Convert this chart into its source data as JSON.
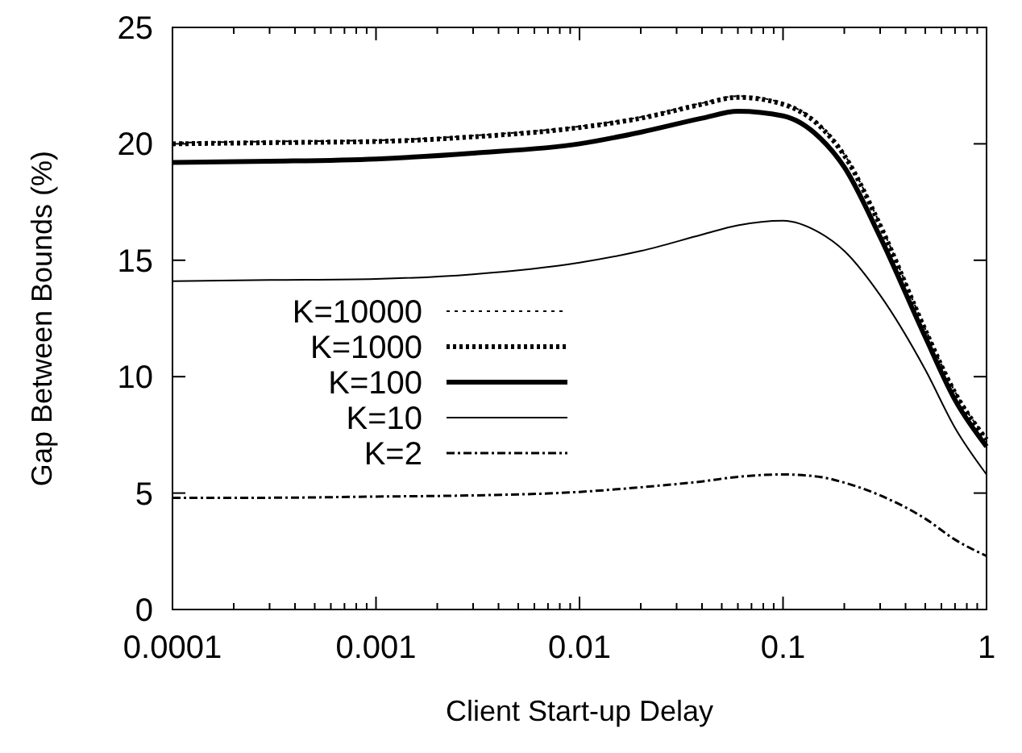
{
  "chart_data": {
    "type": "line",
    "xlabel": "Client Start-up Delay",
    "ylabel": "Gap Between Bounds (%)",
    "log": "x",
    "xlim": [
      0.0001,
      1
    ],
    "xticks": [
      0.0001,
      0.001,
      0.01,
      0.1,
      1
    ],
    "ylim": [
      0,
      25
    ],
    "yticks": [
      0,
      5,
      10,
      15,
      20,
      25
    ],
    "grid": false,
    "legend": "left",
    "x": [
      0.0001,
      0.0003,
      0.001,
      0.003,
      0.01,
      0.02,
      0.04,
      0.06,
      0.1,
      0.15,
      0.2,
      0.3,
      0.5,
      0.7,
      1
    ],
    "series": [
      {
        "name": "K=10000",
        "color": "#000000",
        "line_style": "dotted",
        "values": [
          20.05,
          20.1,
          20.15,
          20.35,
          20.75,
          21.15,
          21.75,
          22.05,
          21.75,
          20.85,
          19.55,
          16.55,
          12.05,
          9.35,
          7.35
        ]
      },
      {
        "name": "K=1000",
        "color": "#000000",
        "line_style": "dotted",
        "values": [
          20.0,
          20.05,
          20.1,
          20.3,
          20.7,
          21.1,
          21.7,
          22.0,
          21.7,
          20.8,
          19.5,
          16.5,
          12.0,
          9.3,
          7.3
        ]
      },
      {
        "name": "K=100",
        "color": "#000000",
        "line_style": "solid",
        "values": [
          19.2,
          19.25,
          19.35,
          19.6,
          20.0,
          20.5,
          21.1,
          21.4,
          21.2,
          20.3,
          19.0,
          16.0,
          11.7,
          9.0,
          7.0
        ]
      },
      {
        "name": "K=10",
        "color": "#000000",
        "line_style": "solid",
        "values": [
          14.1,
          14.15,
          14.2,
          14.4,
          14.9,
          15.4,
          16.1,
          16.5,
          16.7,
          16.2,
          15.4,
          13.5,
          10.3,
          7.8,
          5.8
        ]
      },
      {
        "name": "K=2",
        "color": "#000000",
        "line_style": "dashdot",
        "values": [
          4.8,
          4.8,
          4.85,
          4.9,
          5.05,
          5.25,
          5.5,
          5.7,
          5.8,
          5.7,
          5.45,
          4.9,
          3.9,
          3.0,
          2.3
        ]
      }
    ]
  }
}
